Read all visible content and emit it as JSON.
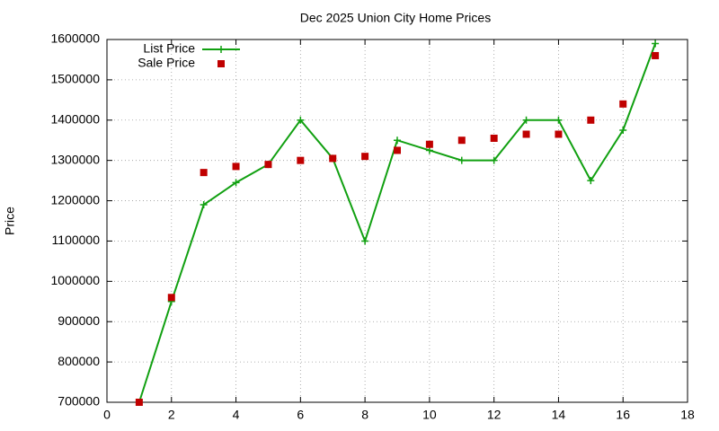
{
  "chart_data": {
    "type": "line",
    "title": "Dec 2025 Union City Home Prices",
    "y_label": "Price",
    "x": [
      1,
      2,
      3,
      4,
      5,
      6,
      7,
      8,
      9,
      10,
      11,
      12,
      13,
      14,
      15,
      16,
      17
    ],
    "series": [
      {
        "name": "List Price",
        "color": "#11a011",
        "style": "linespoints",
        "values": [
          700000,
          950000,
          1190000,
          1245000,
          1290000,
          1400000,
          1305000,
          1100000,
          1350000,
          1325000,
          1300000,
          1300000,
          1400000,
          1400000,
          1250000,
          1375000,
          1590000
        ]
      },
      {
        "name": "Sale Price",
        "color": "#c00000",
        "style": "points",
        "values": [
          700000,
          960000,
          1270000,
          1285000,
          1290000,
          1300000,
          1305000,
          1310000,
          1325000,
          1340000,
          1350000,
          1355000,
          1365000,
          1365000,
          1400000,
          1440000,
          1560000
        ]
      }
    ],
    "xlim": [
      0,
      18
    ],
    "xticks": [
      0,
      2,
      4,
      6,
      8,
      10,
      12,
      14,
      16,
      18
    ],
    "ylim": [
      700000,
      1600000
    ],
    "yticks": [
      700000,
      800000,
      900000,
      1000000,
      1100000,
      1200000,
      1300000,
      1400000,
      1500000,
      1600000
    ],
    "grid": true,
    "legend": "top-left"
  }
}
